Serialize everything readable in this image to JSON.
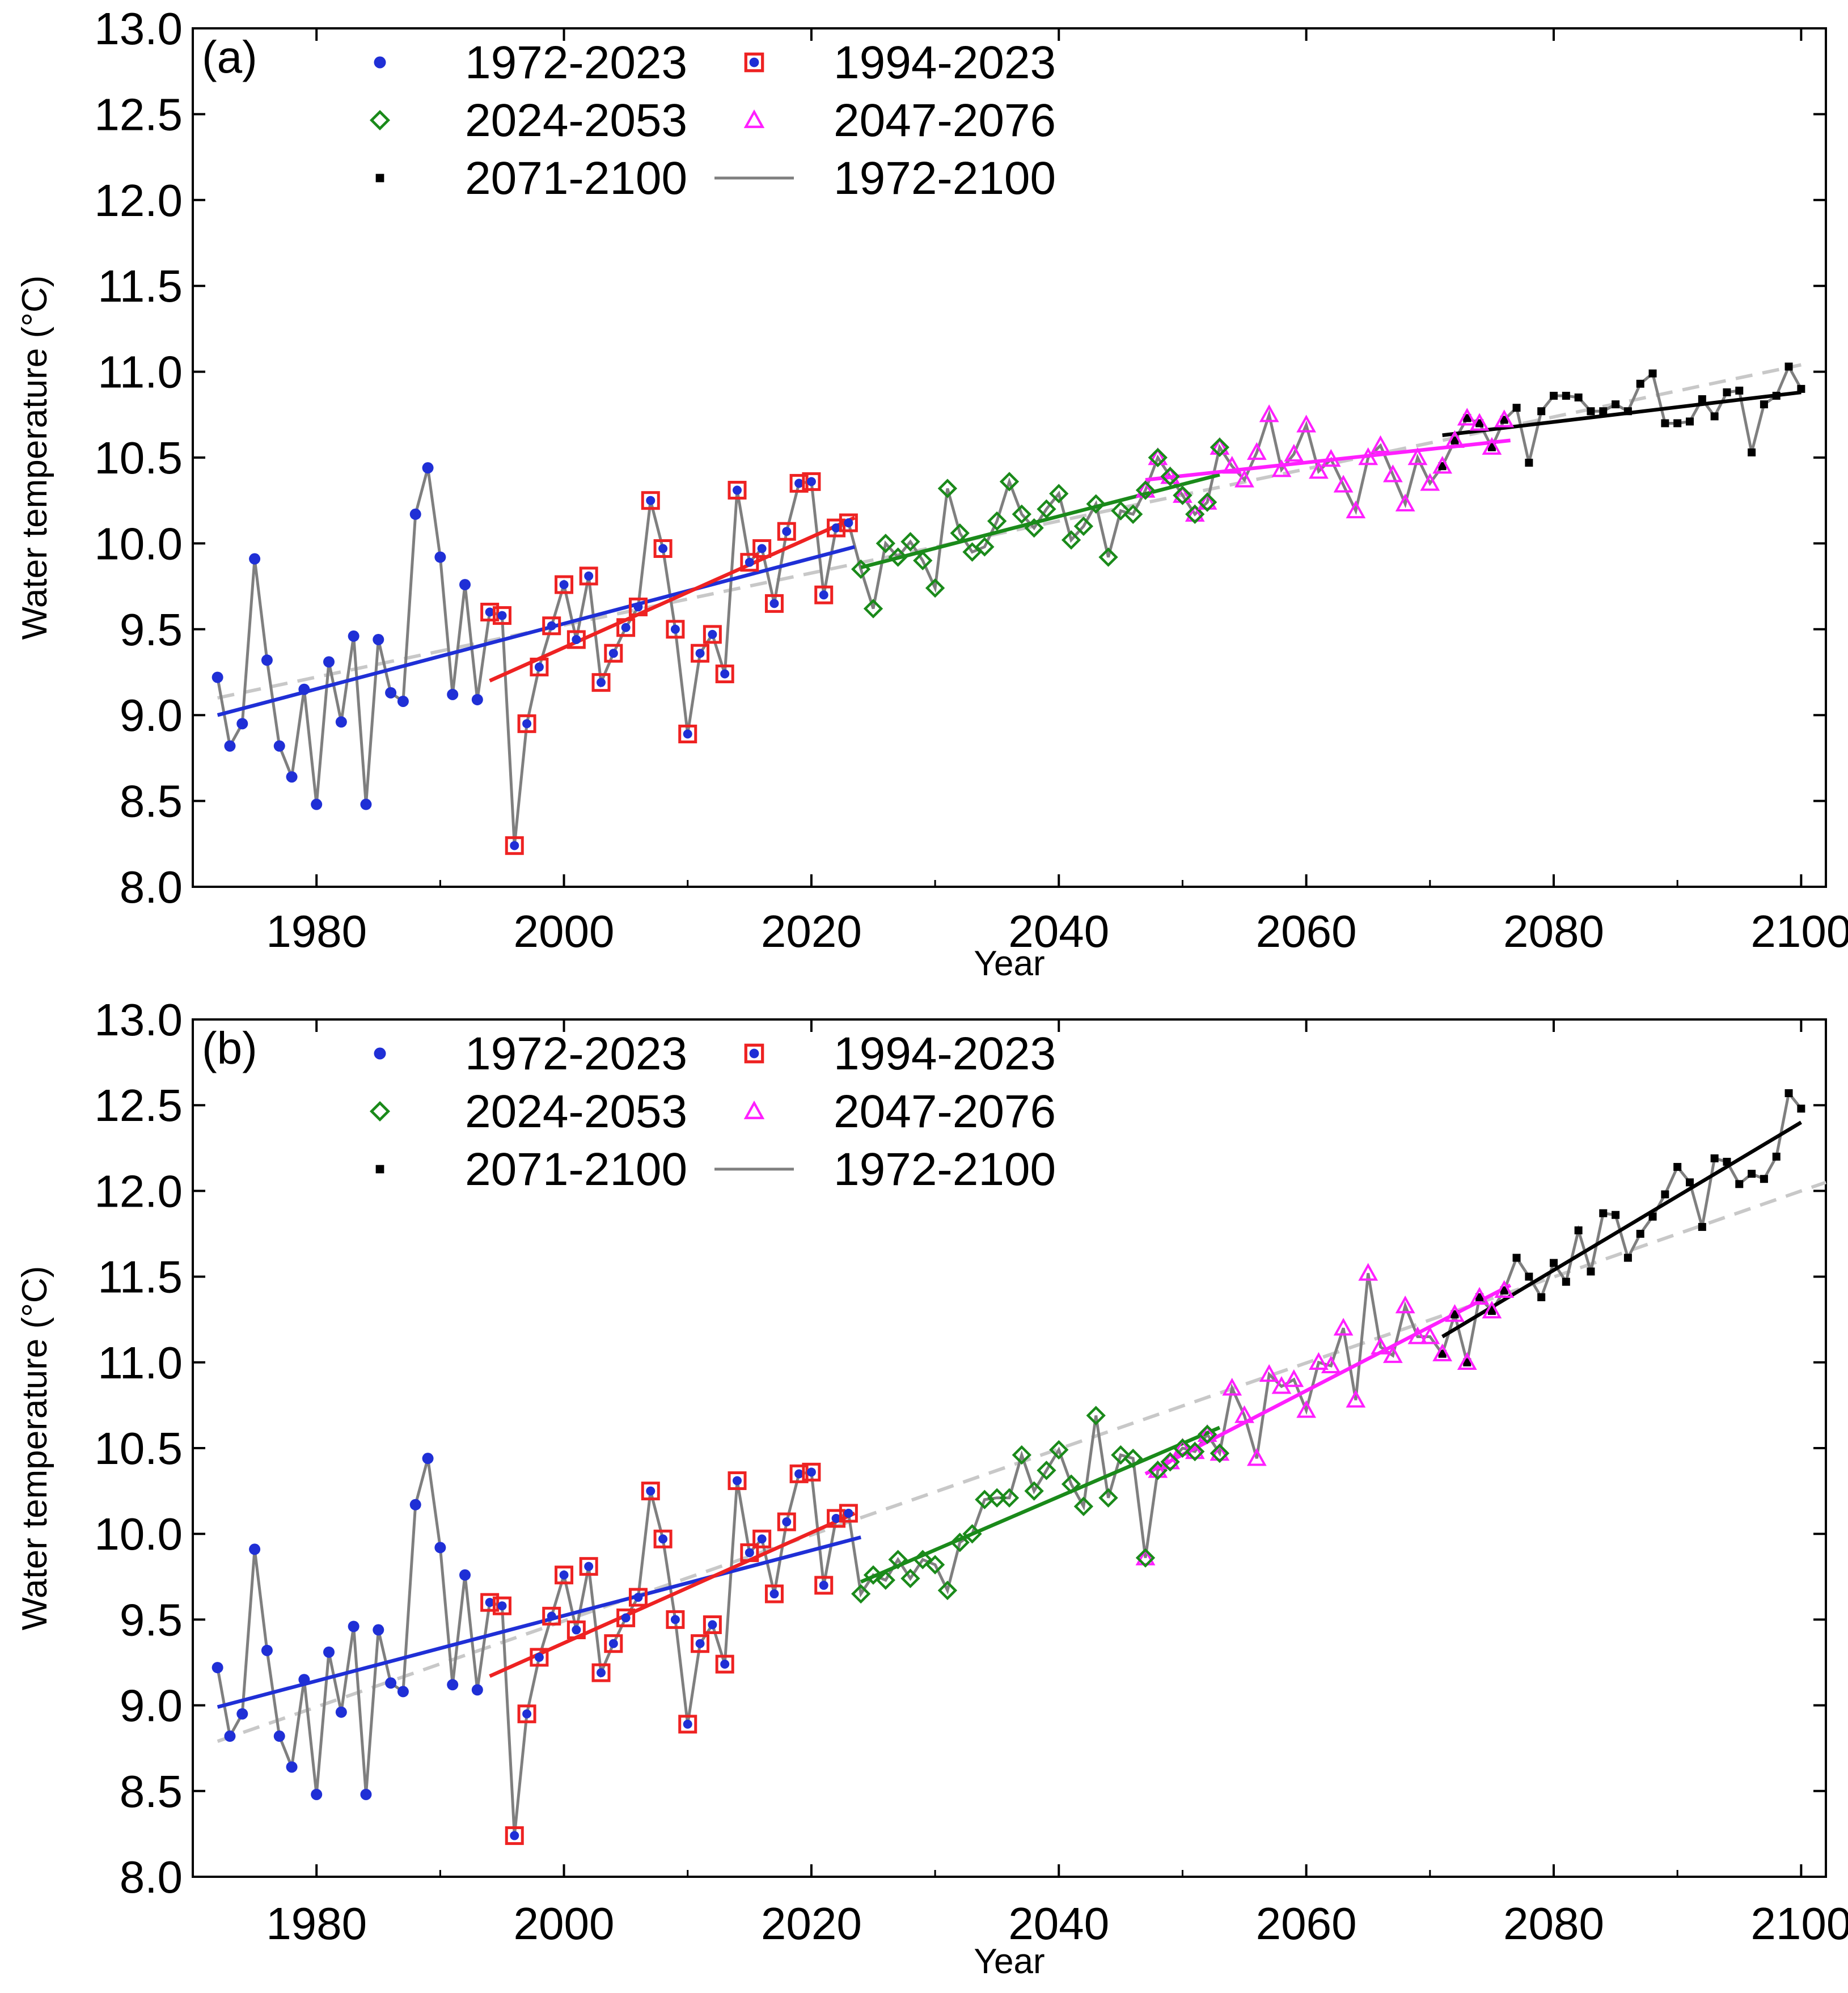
{
  "figure": {
    "ylabel": "Water temperature (°C)",
    "xlabel": "Year"
  },
  "colors": {
    "observed": "#1f2fd6",
    "recent": "#ee2222",
    "near_future": "#1a8a1a",
    "mid_future": "#ff1fff",
    "far_future": "#000000",
    "series_line": "#7f7f7f",
    "long_trend": "#c8c8c8"
  },
  "legend": [
    {
      "key": "observed",
      "label": "1972-2023",
      "marker": "dot"
    },
    {
      "key": "recent",
      "label": "1994-2023",
      "marker": "square-dot"
    },
    {
      "key": "near_future",
      "label": "2024-2053",
      "marker": "diamond"
    },
    {
      "key": "mid_future",
      "label": "2047-2076",
      "marker": "triangle"
    },
    {
      "key": "far_future",
      "label": "2071-2100",
      "marker": "small-square"
    },
    {
      "key": "series_line",
      "label": "1972-2100",
      "marker": "line"
    }
  ],
  "chart_data": [
    {
      "type": "line",
      "panel": "(a)",
      "xlabel": "Year",
      "ylabel": "Water temperature (°C)",
      "xlim": [
        1970,
        2102
      ],
      "ylim": [
        8.0,
        13.0
      ],
      "xticks": [
        1980,
        2000,
        2020,
        2040,
        2060,
        2080,
        2100
      ],
      "yticks": [
        "8.0",
        "8.5",
        "9.0",
        "9.5",
        "10.0",
        "10.5",
        "11.0",
        "11.5",
        "12.0",
        "12.5",
        "13.0"
      ],
      "series": [
        {
          "name": "1972-2100",
          "x_start": 1972,
          "values": [
            9.22,
            8.82,
            8.95,
            9.91,
            9.32,
            8.82,
            8.64,
            9.15,
            8.48,
            9.31,
            8.96,
            9.46,
            8.48,
            9.44,
            9.13,
            9.08,
            10.17,
            10.44,
            9.92,
            9.12,
            9.76,
            9.09,
            9.6,
            9.58,
            8.24,
            8.95,
            9.28,
            9.52,
            9.76,
            9.44,
            9.81,
            9.19,
            9.36,
            9.51,
            9.63,
            10.25,
            9.97,
            9.5,
            8.89,
            9.36,
            9.47,
            9.24,
            10.31,
            9.89,
            9.97,
            9.65,
            10.07,
            10.35,
            10.36,
            9.7,
            10.09,
            10.12,
            9.85,
            9.62,
            10.0,
            9.92,
            10.01,
            9.9,
            9.74,
            10.32,
            10.06,
            9.95,
            9.98,
            10.13,
            10.36,
            10.17,
            10.09,
            10.2,
            10.29,
            10.02,
            10.1,
            10.23,
            9.92,
            10.19,
            10.17,
            10.31,
            10.5,
            10.39,
            10.28,
            10.17,
            10.24,
            10.56,
            10.45,
            10.37,
            10.53,
            10.75,
            10.43,
            10.52,
            10.69,
            10.42,
            10.49,
            10.34,
            10.19,
            10.5,
            10.57,
            10.4,
            10.23,
            10.5,
            10.35,
            10.45,
            10.6,
            10.73,
            10.7,
            10.56,
            10.72,
            10.79,
            10.47,
            10.77,
            10.86,
            10.86,
            10.85,
            10.77,
            10.77,
            10.81,
            10.77,
            10.93,
            10.99,
            10.7,
            10.7,
            10.71,
            10.84,
            10.74,
            10.88,
            10.89,
            10.53,
            10.81,
            10.86,
            11.03,
            10.9
          ]
        },
        {
          "name": "1972-2023",
          "x_start": 1972,
          "count": 52
        },
        {
          "name": "1994-2023",
          "x_start": 1994,
          "count": 30
        },
        {
          "name": "2024-2053",
          "x_start": 2024,
          "count": 30
        },
        {
          "name": "2047-2076",
          "x_start": 2047,
          "count": 30
        },
        {
          "name": "2071-2100",
          "x_start": 2071,
          "count": 30
        }
      ],
      "trend_lines": [
        {
          "name": "1972-2023",
          "x": [
            1972,
            2023.5
          ],
          "y": [
            9.0,
            9.98
          ]
        },
        {
          "name": "1994-2023",
          "x": [
            1994,
            2023.5
          ],
          "y": [
            9.2,
            10.15
          ]
        },
        {
          "name": "2024-2053",
          "x": [
            2024,
            2053
          ],
          "y": [
            9.86,
            10.4
          ]
        },
        {
          "name": "2047-2076",
          "x": [
            2047,
            2076.5
          ],
          "y": [
            10.37,
            10.6
          ]
        },
        {
          "name": "2071-2100",
          "x": [
            2071,
            2100
          ],
          "y": [
            10.63,
            10.88
          ]
        },
        {
          "name": "1972-2100",
          "x": [
            1972,
            2100
          ],
          "y": [
            9.1,
            11.04
          ]
        }
      ]
    },
    {
      "type": "line",
      "panel": "(b)",
      "xlabel": "Year",
      "ylabel": "Water temperature (°C)",
      "xlim": [
        1970,
        2102
      ],
      "ylim": [
        8.0,
        13.0
      ],
      "xticks": [
        1980,
        2000,
        2020,
        2040,
        2060,
        2080,
        2100
      ],
      "yticks": [
        "8.0",
        "8.5",
        "9.0",
        "9.5",
        "10.0",
        "10.5",
        "11.0",
        "11.5",
        "12.0",
        "12.5",
        "13.0"
      ],
      "series": [
        {
          "name": "1972-2100",
          "x_start": 1972,
          "values": [
            9.22,
            8.82,
            8.95,
            9.91,
            9.32,
            8.82,
            8.64,
            9.15,
            8.48,
            9.31,
            8.96,
            9.46,
            8.48,
            9.44,
            9.13,
            9.08,
            10.17,
            10.44,
            9.92,
            9.12,
            9.76,
            9.09,
            9.6,
            9.58,
            8.24,
            8.95,
            9.28,
            9.52,
            9.76,
            9.44,
            9.81,
            9.19,
            9.36,
            9.51,
            9.63,
            10.25,
            9.97,
            9.5,
            8.89,
            9.36,
            9.47,
            9.24,
            10.31,
            9.89,
            9.97,
            9.65,
            10.07,
            10.35,
            10.36,
            9.7,
            10.09,
            10.12,
            9.65,
            9.76,
            9.73,
            9.85,
            9.74,
            9.85,
            9.82,
            9.67,
            9.95,
            10.0,
            10.2,
            10.21,
            10.21,
            10.46,
            10.25,
            10.37,
            10.49,
            10.29,
            10.16,
            10.69,
            10.21,
            10.46,
            10.44,
            9.86,
            10.37,
            10.42,
            10.5,
            10.48,
            10.58,
            10.47,
            10.85,
            10.69,
            10.44,
            10.93,
            10.86,
            10.9,
            10.72,
            11.0,
            10.98,
            11.2,
            10.78,
            11.52,
            11.09,
            11.04,
            11.33,
            11.15,
            11.15,
            11.05,
            11.28,
            11.0,
            11.38,
            11.3,
            11.42,
            11.61,
            11.5,
            11.38,
            11.58,
            11.47,
            11.77,
            11.53,
            11.87,
            11.86,
            11.61,
            11.75,
            11.85,
            11.98,
            12.14,
            12.05,
            11.79,
            12.19,
            12.17,
            12.04,
            12.1,
            12.07,
            12.2,
            12.57,
            12.48
          ]
        },
        {
          "name": "1972-2023",
          "x_start": 1972,
          "count": 52
        },
        {
          "name": "1994-2023",
          "x_start": 1994,
          "count": 30
        },
        {
          "name": "2024-2053",
          "x_start": 2024,
          "count": 30
        },
        {
          "name": "2047-2076",
          "x_start": 2047,
          "count": 30
        },
        {
          "name": "2071-2100",
          "x_start": 2071,
          "count": 30
        }
      ],
      "trend_lines": [
        {
          "name": "1972-2023",
          "x": [
            1972,
            2024
          ],
          "y": [
            8.99,
            9.98
          ]
        },
        {
          "name": "1994-2023",
          "x": [
            1994,
            2023.5
          ],
          "y": [
            9.17,
            10.12
          ]
        },
        {
          "name": "2024-2053",
          "x": [
            2024,
            2053
          ],
          "y": [
            9.72,
            10.62
          ]
        },
        {
          "name": "2047-2076",
          "x": [
            2047,
            2076.5
          ],
          "y": [
            10.35,
            11.45
          ]
        },
        {
          "name": "2071-2100",
          "x": [
            2071,
            2100
          ],
          "y": [
            11.15,
            12.4
          ]
        },
        {
          "name": "1972-2100",
          "x": [
            1972,
            2102
          ],
          "y": [
            8.79,
            12.05
          ]
        }
      ]
    }
  ]
}
